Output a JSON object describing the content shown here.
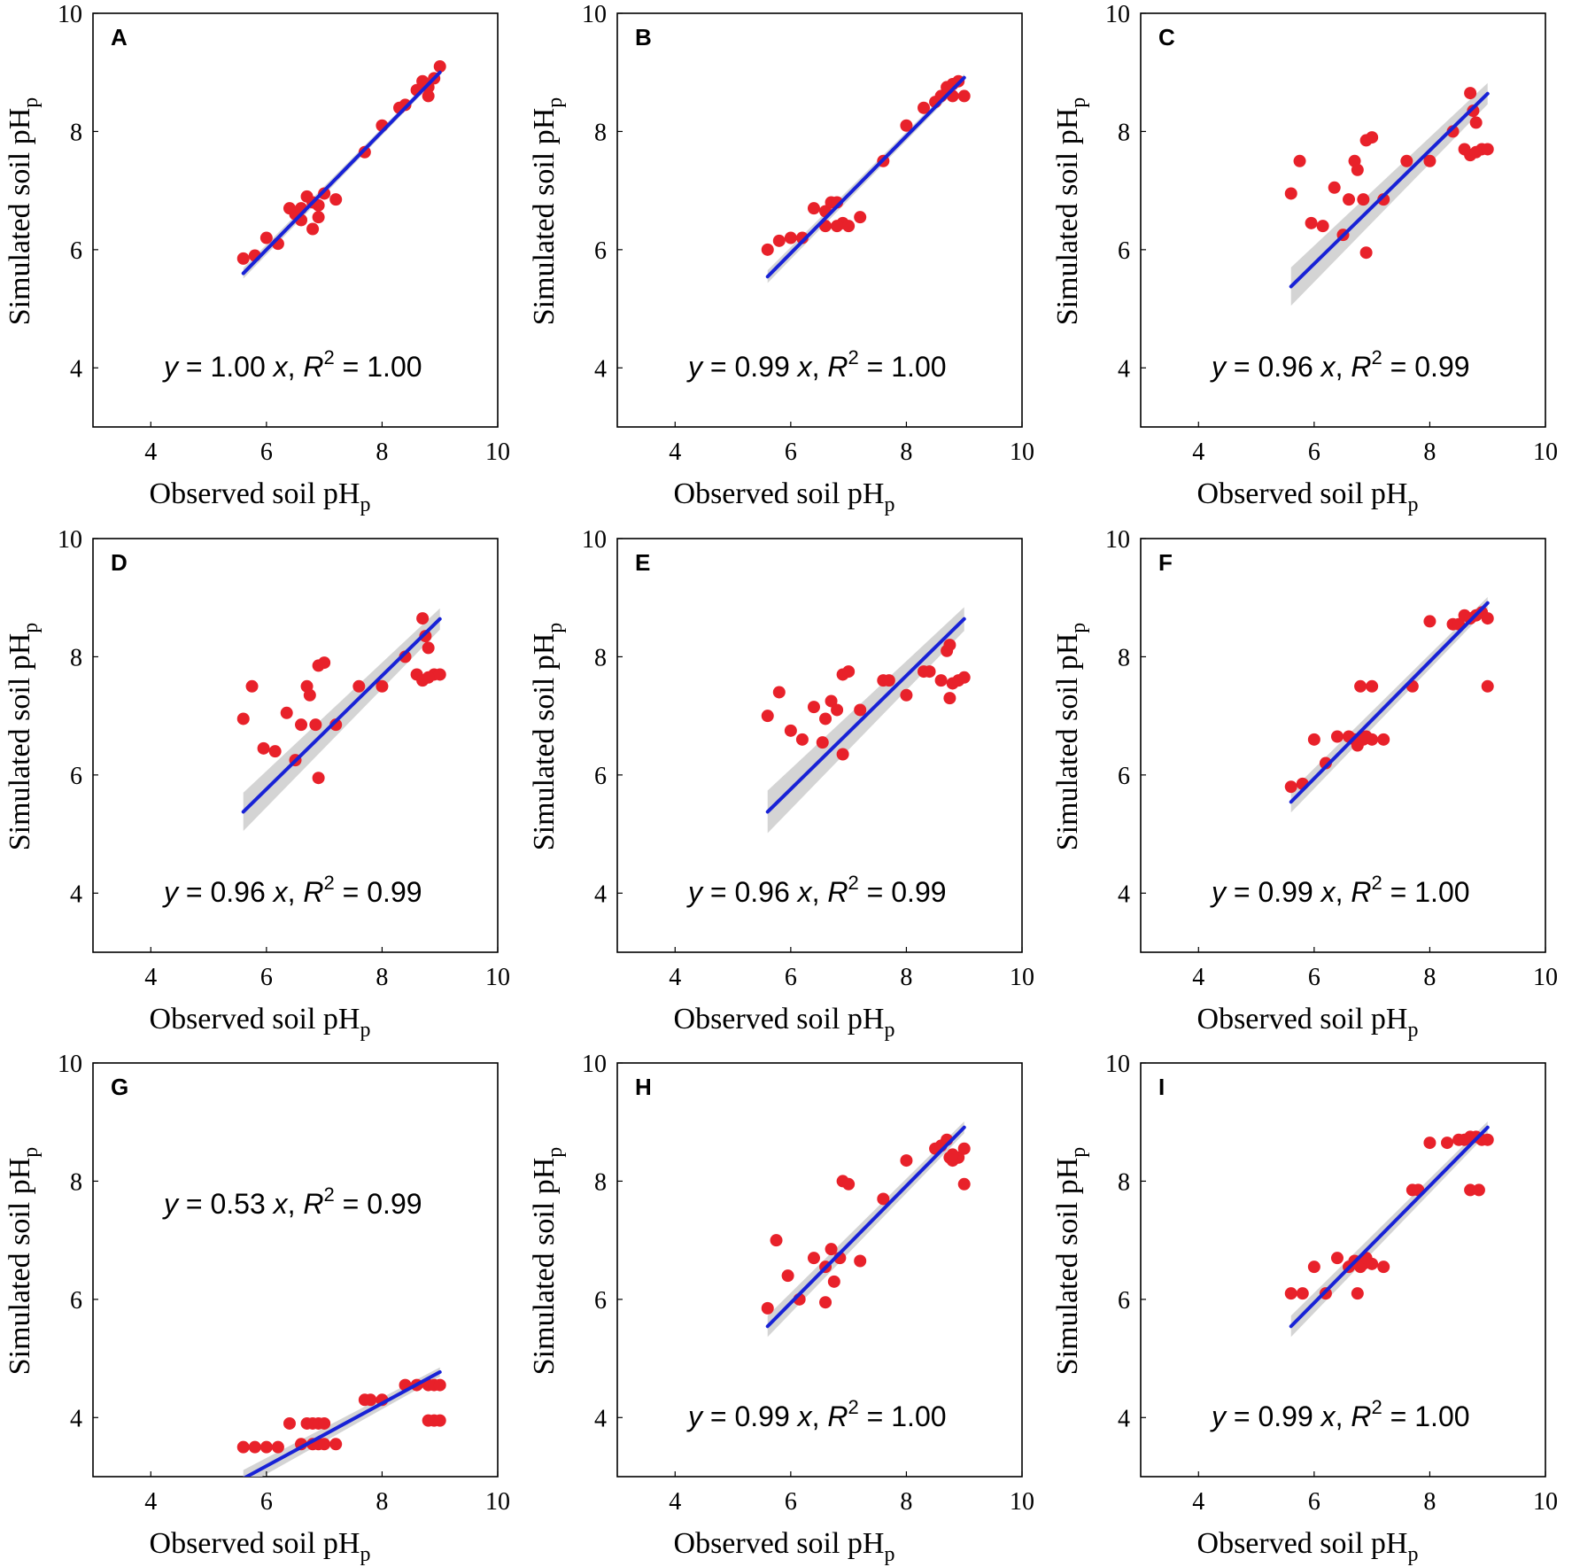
{
  "chart_data": [
    {
      "panel": "A",
      "type": "scatter",
      "xlabel": "Observed soil pH",
      "xlabel_sub": "p",
      "ylabel": "Simulated soil pH",
      "ylabel_sub": "p",
      "xlim": [
        3,
        10
      ],
      "ylim": [
        3,
        10
      ],
      "xticks": [
        "4",
        "6",
        "8",
        "10"
      ],
      "yticks": [
        "4",
        "6",
        "8",
        "10"
      ],
      "equation": {
        "y": "y",
        "eq_slope": " = 1.00 ",
        "x": "x",
        "comma": ", ",
        "r": "R",
        "r_sup": "2",
        "eq_r2": " = 1.00"
      },
      "equation_position": "bottom",
      "fit": {
        "slope": 1.0,
        "x_range": [
          5.6,
          9.0
        ],
        "band": 0.05
      },
      "x": [
        5.6,
        5.8,
        6.0,
        6.2,
        6.4,
        6.5,
        6.6,
        6.7,
        6.8,
        6.9,
        7.0,
        7.2,
        6.6,
        6.8,
        6.9,
        7.7,
        8.0,
        8.3,
        8.4,
        8.6,
        8.7,
        8.8,
        8.9,
        9.0,
        8.8
      ],
      "y": [
        5.85,
        5.9,
        6.2,
        6.1,
        6.7,
        6.6,
        6.5,
        6.9,
        6.35,
        6.75,
        6.95,
        6.85,
        6.7,
        6.8,
        6.55,
        7.65,
        8.1,
        8.4,
        8.45,
        8.7,
        8.85,
        8.75,
        8.9,
        9.1,
        8.6
      ]
    },
    {
      "panel": "B",
      "type": "scatter",
      "xlabel": "Observed soil pH",
      "xlabel_sub": "p",
      "ylabel": "Simulated soil pH",
      "ylabel_sub": "p",
      "xlim": [
        3,
        10
      ],
      "ylim": [
        3,
        10
      ],
      "xticks": [
        "4",
        "6",
        "8",
        "10"
      ],
      "yticks": [
        "4",
        "6",
        "8",
        "10"
      ],
      "equation": {
        "y": "y",
        "eq_slope": " = 0.99 ",
        "x": "x",
        "comma": ", ",
        "r": "R",
        "r_sup": "2",
        "eq_r2": " = 1.00"
      },
      "equation_position": "bottom",
      "fit": {
        "slope": 0.99,
        "x_range": [
          5.6,
          9.0
        ],
        "band": 0.06
      },
      "x": [
        5.6,
        5.8,
        6.0,
        6.2,
        6.4,
        6.6,
        6.7,
        6.8,
        6.9,
        7.0,
        6.6,
        6.8,
        7.2,
        7.6,
        8.0,
        8.3,
        8.5,
        8.6,
        8.7,
        8.8,
        8.9,
        9.0,
        8.8
      ],
      "y": [
        6.0,
        6.15,
        6.2,
        6.2,
        6.7,
        6.65,
        6.8,
        6.8,
        6.45,
        6.4,
        6.4,
        6.4,
        6.55,
        7.5,
        8.1,
        8.4,
        8.5,
        8.6,
        8.75,
        8.8,
        8.85,
        8.6,
        8.6
      ]
    },
    {
      "panel": "C",
      "type": "scatter",
      "xlabel": "Observed soil pH",
      "xlabel_sub": "p",
      "ylabel": "Simulated soil pH",
      "ylabel_sub": "p",
      "xlim": [
        3,
        10
      ],
      "ylim": [
        3,
        10
      ],
      "xticks": [
        "4",
        "6",
        "8",
        "10"
      ],
      "yticks": [
        "4",
        "6",
        "8",
        "10"
      ],
      "equation": {
        "y": "y",
        "eq_slope": " = 0.96 ",
        "x": "x",
        "comma": ", ",
        "r": "R",
        "r_sup": "2",
        "eq_r2": " = 0.99"
      },
      "equation_position": "bottom",
      "fit": {
        "slope": 0.96,
        "x_range": [
          5.6,
          9.0
        ],
        "band": 0.18
      },
      "x": [
        5.6,
        5.75,
        5.95,
        6.15,
        6.35,
        6.5,
        6.6,
        6.7,
        6.75,
        6.85,
        6.9,
        7.0,
        7.2,
        7.6,
        8.0,
        8.4,
        8.7,
        8.75,
        8.8,
        8.6,
        8.9,
        9.0,
        8.7,
        8.8,
        6.9
      ],
      "y": [
        6.95,
        7.5,
        6.45,
        6.4,
        7.05,
        6.25,
        6.85,
        7.5,
        7.35,
        6.85,
        7.85,
        7.9,
        6.85,
        7.5,
        7.5,
        8.0,
        8.65,
        8.35,
        8.15,
        7.7,
        7.7,
        7.7,
        7.6,
        7.65,
        5.95
      ]
    },
    {
      "panel": "D",
      "type": "scatter",
      "xlabel": "Observed soil pH",
      "xlabel_sub": "p",
      "ylabel": "Simulated soil pH",
      "ylabel_sub": "p",
      "xlim": [
        3,
        10
      ],
      "ylim": [
        3,
        10
      ],
      "xticks": [
        "4",
        "6",
        "8",
        "10"
      ],
      "yticks": [
        "4",
        "6",
        "8",
        "10"
      ],
      "equation": {
        "y": "y",
        "eq_slope": " = 0.96 ",
        "x": "x",
        "comma": ", ",
        "r": "R",
        "r_sup": "2",
        "eq_r2": " = 0.99"
      },
      "equation_position": "bottom",
      "fit": {
        "slope": 0.96,
        "x_range": [
          5.6,
          9.0
        ],
        "band": 0.18
      },
      "x": [
        5.6,
        5.75,
        5.95,
        6.15,
        6.35,
        6.5,
        6.6,
        6.7,
        6.75,
        6.85,
        6.9,
        7.0,
        7.2,
        7.6,
        8.0,
        8.4,
        8.7,
        8.75,
        8.8,
        8.6,
        8.9,
        9.0,
        8.7,
        8.8,
        6.9
      ],
      "y": [
        6.95,
        7.5,
        6.45,
        6.4,
        7.05,
        6.25,
        6.85,
        7.5,
        7.35,
        6.85,
        7.85,
        7.9,
        6.85,
        7.5,
        7.5,
        8.0,
        8.65,
        8.35,
        8.15,
        7.7,
        7.7,
        7.7,
        7.6,
        7.65,
        5.95
      ]
    },
    {
      "panel": "E",
      "type": "scatter",
      "xlabel": "Observed soil pH",
      "xlabel_sub": "p",
      "ylabel": "Simulated soil pH",
      "ylabel_sub": "p",
      "xlim": [
        3,
        10
      ],
      "ylim": [
        3,
        10
      ],
      "xticks": [
        "4",
        "6",
        "8",
        "10"
      ],
      "yticks": [
        "4",
        "6",
        "8",
        "10"
      ],
      "equation": {
        "y": "y",
        "eq_slope": " = 0.96 ",
        "x": "x",
        "comma": ", ",
        "r": "R",
        "r_sup": "2",
        "eq_r2": " = 0.99"
      },
      "equation_position": "bottom",
      "fit": {
        "slope": 0.96,
        "x_range": [
          5.6,
          9.0
        ],
        "band": 0.2
      },
      "x": [
        5.6,
        5.8,
        6.0,
        6.2,
        6.4,
        6.55,
        6.6,
        6.7,
        6.8,
        6.9,
        7.0,
        6.9,
        7.2,
        7.6,
        7.7,
        8.0,
        8.3,
        8.4,
        8.6,
        8.7,
        8.75,
        8.8,
        8.9,
        9.0,
        8.75
      ],
      "y": [
        7.0,
        7.4,
        6.75,
        6.6,
        7.15,
        6.55,
        6.95,
        7.25,
        7.1,
        7.7,
        7.75,
        6.35,
        7.1,
        7.6,
        7.6,
        7.35,
        7.75,
        7.75,
        7.6,
        8.1,
        8.2,
        7.55,
        7.6,
        7.65,
        7.3
      ]
    },
    {
      "panel": "F",
      "type": "scatter",
      "xlabel": "Observed soil pH",
      "xlabel_sub": "p",
      "ylabel": "Simulated soil pH",
      "ylabel_sub": "p",
      "xlim": [
        3,
        10
      ],
      "ylim": [
        3,
        10
      ],
      "xticks": [
        "4",
        "6",
        "8",
        "10"
      ],
      "yticks": [
        "4",
        "6",
        "8",
        "10"
      ],
      "equation": {
        "y": "y",
        "eq_slope": " = 0.99 ",
        "x": "x",
        "comma": ", ",
        "r": "R",
        "r_sup": "2",
        "eq_r2": " = 1.00"
      },
      "equation_position": "bottom",
      "fit": {
        "slope": 0.99,
        "x_range": [
          5.6,
          9.0
        ],
        "band": 0.1
      },
      "x": [
        5.6,
        5.8,
        6.0,
        6.2,
        6.4,
        6.6,
        6.7,
        6.75,
        6.85,
        6.9,
        7.0,
        7.2,
        6.8,
        7.0,
        7.7,
        8.0,
        8.4,
        8.5,
        8.6,
        8.7,
        8.8,
        8.9,
        9.0,
        9.0
      ],
      "y": [
        5.8,
        5.85,
        6.6,
        6.2,
        6.65,
        6.65,
        6.6,
        6.5,
        6.6,
        6.65,
        6.6,
        6.6,
        7.5,
        7.5,
        7.5,
        8.6,
        8.55,
        8.55,
        8.7,
        8.65,
        8.7,
        8.75,
        8.65,
        7.5
      ]
    },
    {
      "panel": "G",
      "type": "scatter",
      "xlabel": "Observed soil pH",
      "xlabel_sub": "p",
      "ylabel": "Simulated soil pH",
      "ylabel_sub": "p",
      "xlim": [
        3,
        10
      ],
      "ylim": [
        3,
        10
      ],
      "xticks": [
        "4",
        "6",
        "8",
        "10"
      ],
      "yticks": [
        "4",
        "6",
        "8",
        "10"
      ],
      "equation": {
        "y": "y",
        "eq_slope": " = 0.53 ",
        "x": "x",
        "comma": ", ",
        "r": "R",
        "r_sup": "2",
        "eq_r2": " = 0.99"
      },
      "equation_position": "top",
      "fit": {
        "slope": 0.53,
        "x_range": [
          5.6,
          9.0
        ],
        "band": 0.08
      },
      "x": [
        5.6,
        5.8,
        6.0,
        6.2,
        6.4,
        6.6,
        6.7,
        6.8,
        6.9,
        7.0,
        7.2,
        6.8,
        6.9,
        7.0,
        7.7,
        7.8,
        8.0,
        8.4,
        8.6,
        8.8,
        8.9,
        9.0,
        8.8,
        8.9,
        9.0
      ],
      "y": [
        3.5,
        3.5,
        3.5,
        3.5,
        3.9,
        3.55,
        3.9,
        3.9,
        3.9,
        3.9,
        3.55,
        3.55,
        3.55,
        3.55,
        4.3,
        4.3,
        4.3,
        4.55,
        4.55,
        4.55,
        4.55,
        4.55,
        3.95,
        3.95,
        3.95
      ]
    },
    {
      "panel": "H",
      "type": "scatter",
      "xlabel": "Observed soil pH",
      "xlabel_sub": "p",
      "ylabel": "Simulated soil pH",
      "ylabel_sub": "p",
      "xlim": [
        3,
        10
      ],
      "ylim": [
        3,
        10
      ],
      "xticks": [
        "4",
        "6",
        "8",
        "10"
      ],
      "yticks": [
        "4",
        "6",
        "8",
        "10"
      ],
      "equation": {
        "y": "y",
        "eq_slope": " = 0.99 ",
        "x": "x",
        "comma": ", ",
        "r": "R",
        "r_sup": "2",
        "eq_r2": " = 1.00"
      },
      "equation_position": "bottom",
      "fit": {
        "slope": 0.99,
        "x_range": [
          5.6,
          9.0
        ],
        "band": 0.1
      },
      "x": [
        5.6,
        5.75,
        5.95,
        6.15,
        6.4,
        6.6,
        6.6,
        6.7,
        6.75,
        6.85,
        6.9,
        7.0,
        7.2,
        7.6,
        8.0,
        8.5,
        8.6,
        8.7,
        8.75,
        8.8,
        8.9,
        9.0,
        9.0,
        8.8
      ],
      "y": [
        5.85,
        7.0,
        6.4,
        6.0,
        6.7,
        6.55,
        5.95,
        6.85,
        6.3,
        6.7,
        8.0,
        7.95,
        6.65,
        7.7,
        8.35,
        8.55,
        8.6,
        8.7,
        8.4,
        8.35,
        8.4,
        8.55,
        7.95,
        8.45
      ]
    },
    {
      "panel": "I",
      "type": "scatter",
      "xlabel": "Observed soil pH",
      "xlabel_sub": "p",
      "ylabel": "Simulated soil pH",
      "ylabel_sub": "p",
      "xlim": [
        3,
        10
      ],
      "ylim": [
        3,
        10
      ],
      "xticks": [
        "4",
        "6",
        "8",
        "10"
      ],
      "yticks": [
        "4",
        "6",
        "8",
        "10"
      ],
      "equation": {
        "y": "y",
        "eq_slope": " = 0.99 ",
        "x": "x",
        "comma": ", ",
        "r": "R",
        "r_sup": "2",
        "eq_r2": " = 1.00"
      },
      "equation_position": "bottom",
      "fit": {
        "slope": 0.99,
        "x_range": [
          5.6,
          9.0
        ],
        "band": 0.1
      },
      "x": [
        5.6,
        5.8,
        6.0,
        6.2,
        6.4,
        6.6,
        6.7,
        6.8,
        6.85,
        6.9,
        7.0,
        7.2,
        6.75,
        7.7,
        7.8,
        8.0,
        8.3,
        8.5,
        8.6,
        8.7,
        8.8,
        8.9,
        9.0,
        8.7,
        8.85
      ],
      "y": [
        6.1,
        6.1,
        6.55,
        6.1,
        6.7,
        6.55,
        6.65,
        6.55,
        6.6,
        6.7,
        6.6,
        6.55,
        6.1,
        7.85,
        7.85,
        8.65,
        8.65,
        8.7,
        8.7,
        8.75,
        8.75,
        8.7,
        8.7,
        7.85,
        7.85
      ]
    }
  ],
  "colors": {
    "point": "#e8212a",
    "fit_line": "#1822d6",
    "band": "#cfcfcf",
    "axis": "#000000",
    "background": "#ffffff"
  }
}
